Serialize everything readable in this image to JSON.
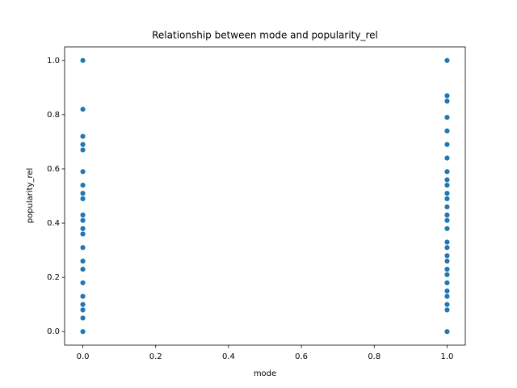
{
  "chart_data": {
    "type": "scatter",
    "title": "Relationship between mode and popularity_rel",
    "x_label": "mode",
    "y_label": "popularity_rel",
    "color": "#1f77b4",
    "x": [
      0,
      0,
      0,
      0,
      0,
      0,
      0,
      0,
      0,
      0,
      0,
      0,
      0,
      0,
      0,
      0,
      0,
      0,
      0,
      0,
      0,
      0,
      1,
      1,
      1,
      1,
      1,
      1,
      1,
      1,
      1,
      1,
      1,
      1,
      1,
      1,
      1,
      1,
      1,
      1,
      1,
      1,
      1,
      1,
      1,
      1,
      1,
      1,
      1,
      1
    ],
    "values": [
      1.0,
      0.82,
      0.72,
      0.69,
      0.67,
      0.59,
      0.54,
      0.51,
      0.49,
      0.43,
      0.41,
      0.38,
      0.36,
      0.31,
      0.26,
      0.23,
      0.18,
      0.13,
      0.1,
      0.08,
      0.05,
      0,
      1.0,
      0.87,
      0.85,
      0.79,
      0.74,
      0.69,
      0.64,
      0.59,
      0.56,
      0.54,
      0.51,
      0.49,
      0.46,
      0.43,
      0.41,
      0.38,
      0.33,
      0.31,
      0.28,
      0.26,
      0.23,
      0.21,
      0.18,
      0.15,
      0.13,
      0.1,
      0.08,
      0
    ],
    "xlim": [
      -0.05,
      1.05
    ],
    "ylim": [
      -0.05,
      1.05
    ],
    "xticks": [
      {
        "value": 0,
        "label": "0.0"
      },
      0.2,
      0.4,
      0.6,
      0.8,
      {
        "value": 1,
        "label": "1.0"
      }
    ],
    "yticks": [
      {
        "value": 0,
        "label": "0.0"
      },
      0.2,
      0.4,
      0.6,
      0.8,
      {
        "value": 1,
        "label": "1.0"
      }
    ],
    "grid": false
  }
}
